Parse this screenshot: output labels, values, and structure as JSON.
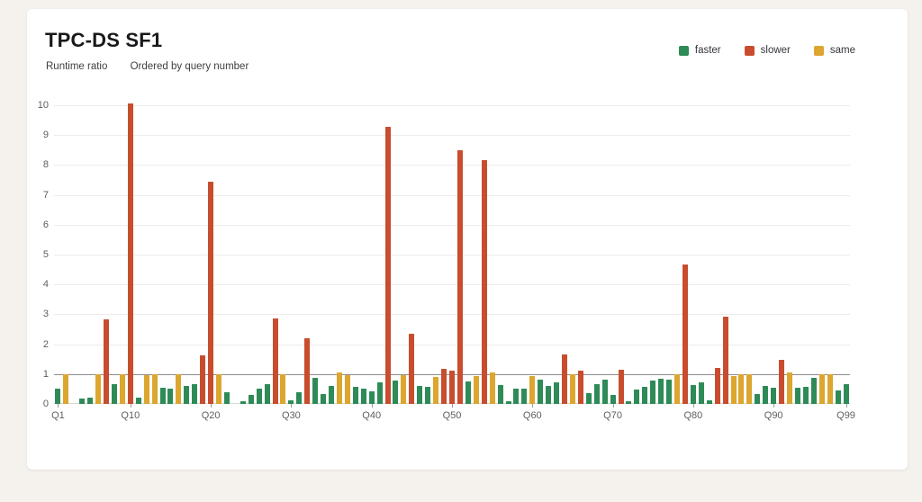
{
  "page": {
    "background": "#f5f2ee",
    "card_background": "#ffffff"
  },
  "header": {
    "title": "TPC-DS SF1",
    "subtitle_left": "Runtime ratio",
    "subtitle_right": "Ordered by query number"
  },
  "legend": [
    {
      "label": "faster",
      "color": "#2e8b57"
    },
    {
      "label": "slower",
      "color": "#c84d2e"
    },
    {
      "label": "same",
      "color": "#dca62f"
    }
  ],
  "chart_data": {
    "type": "bar",
    "title": "TPC-DS SF1",
    "xlabel": "",
    "ylabel": "Runtime ratio",
    "ylim": [
      0,
      10
    ],
    "ytick_interval": 1,
    "yticks": [
      0,
      1,
      2,
      3,
      4,
      5,
      6,
      7,
      8,
      9,
      10
    ],
    "reference_line": 1.0,
    "grid": true,
    "legend_position": "top-right",
    "status_colors": {
      "faster": "#2e8b57",
      "slower": "#c84d2e",
      "same": "#dca62f"
    },
    "x_labeled_ticks": [
      "Q1",
      "Q10",
      "Q20",
      "Q30",
      "Q40",
      "Q50",
      "Q60",
      "Q70",
      "Q80",
      "Q90",
      "Q99"
    ],
    "categories": [
      "Q1",
      "Q2",
      "Q3",
      "Q4",
      "Q5",
      "Q6",
      "Q7",
      "Q8",
      "Q9",
      "Q10",
      "Q11",
      "Q12",
      "Q13",
      "Q14",
      "Q15",
      "Q16",
      "Q17",
      "Q18",
      "Q19",
      "Q20",
      "Q21",
      "Q22",
      "Q23",
      "Q24",
      "Q25",
      "Q26",
      "Q27",
      "Q28",
      "Q29",
      "Q30",
      "Q31",
      "Q32",
      "Q33",
      "Q34",
      "Q35",
      "Q36",
      "Q37",
      "Q38",
      "Q39",
      "Q40",
      "Q41",
      "Q42",
      "Q43",
      "Q44",
      "Q45",
      "Q46",
      "Q47",
      "Q48",
      "Q49",
      "Q50",
      "Q51",
      "Q52",
      "Q53",
      "Q54",
      "Q55",
      "Q56",
      "Q57",
      "Q58",
      "Q59",
      "Q60",
      "Q61",
      "Q62",
      "Q63",
      "Q64",
      "Q65",
      "Q66",
      "Q67",
      "Q68",
      "Q69",
      "Q70",
      "Q71",
      "Q72",
      "Q73",
      "Q74",
      "Q75",
      "Q76",
      "Q77",
      "Q78",
      "Q79",
      "Q80",
      "Q81",
      "Q82",
      "Q83",
      "Q84",
      "Q85",
      "Q86",
      "Q87",
      "Q88",
      "Q89",
      "Q90",
      "Q91",
      "Q92",
      "Q93",
      "Q94",
      "Q95",
      "Q96",
      "Q97",
      "Q98",
      "Q99"
    ],
    "values": [
      0.51,
      1.0,
      0,
      0.19,
      0.21,
      1.0,
      2.83,
      0.66,
      1.0,
      10.06,
      0.2,
      0.95,
      1.0,
      0.53,
      0.5,
      1.0,
      0.6,
      0.66,
      1.63,
      7.44,
      1.0,
      0.39,
      0,
      0.1,
      0.3,
      0.5,
      0.66,
      2.86,
      1.0,
      0.13,
      0.39,
      2.2,
      0.87,
      0.34,
      0.61,
      1.05,
      0.95,
      0.56,
      0.51,
      0.41,
      0.73,
      9.28,
      0.77,
      0.97,
      2.35,
      0.61,
      0.56,
      0.9,
      1.19,
      1.12,
      8.49,
      0.74,
      0.92,
      8.16,
      1.05,
      0.64,
      0.08,
      0.5,
      0.5,
      0.92,
      0.82,
      0.59,
      0.73,
      1.65,
      0.98,
      1.1,
      0.36,
      0.66,
      0.82,
      0.31,
      1.14,
      0.08,
      0.48,
      0.58,
      0.78,
      0.84,
      0.82,
      0.98,
      4.67,
      0.62,
      0.72,
      0.12,
      1.22,
      2.93,
      0.93,
      1.0,
      1.0,
      0.34,
      0.61,
      0.54,
      1.47,
      1.05,
      0.53,
      0.57,
      0.87,
      1.0,
      1.0,
      0.45,
      0.65
    ],
    "status": [
      "faster",
      "same",
      "none",
      "faster",
      "faster",
      "same",
      "slower",
      "faster",
      "same",
      "slower",
      "faster",
      "same",
      "same",
      "faster",
      "faster",
      "same",
      "faster",
      "faster",
      "slower",
      "slower",
      "same",
      "faster",
      "none",
      "faster",
      "faster",
      "faster",
      "faster",
      "slower",
      "same",
      "faster",
      "faster",
      "slower",
      "faster",
      "faster",
      "faster",
      "same",
      "same",
      "faster",
      "faster",
      "faster",
      "faster",
      "slower",
      "faster",
      "same",
      "slower",
      "faster",
      "faster",
      "same",
      "slower",
      "slower",
      "slower",
      "faster",
      "same",
      "slower",
      "same",
      "faster",
      "faster",
      "faster",
      "faster",
      "same",
      "faster",
      "faster",
      "faster",
      "slower",
      "same",
      "slower",
      "faster",
      "faster",
      "faster",
      "faster",
      "slower",
      "faster",
      "faster",
      "faster",
      "faster",
      "faster",
      "faster",
      "same",
      "slower",
      "faster",
      "faster",
      "faster",
      "slower",
      "slower",
      "same",
      "same",
      "same",
      "faster",
      "faster",
      "faster",
      "slower",
      "same",
      "faster",
      "faster",
      "faster",
      "same",
      "same",
      "faster",
      "faster"
    ]
  }
}
